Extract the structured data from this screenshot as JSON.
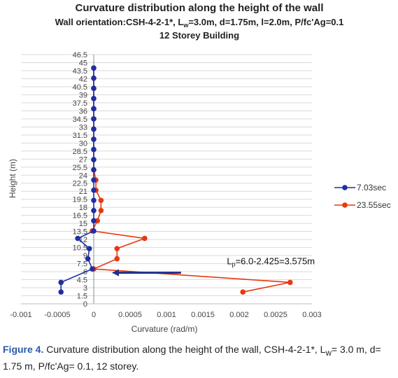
{
  "chart_data": {
    "type": "scatter",
    "title": "Curvature distribution along the height of the wall",
    "subtitle_pre": "Wall orientation:CSH-4-2-1*, L",
    "subtitle_sub": "w",
    "subtitle_post": "=3.0m, d=1.75m, l=2.0m, P/fc'Ag=0.1",
    "subtitle2": "12 Storey Building",
    "xlabel": "Curvature (rad/m)",
    "ylabel": "Height (m)",
    "xlim": [
      -0.001,
      0.003
    ],
    "ylim": [
      0,
      46.5
    ],
    "x_ticks": [
      "-0.001",
      "-0.0005",
      "0",
      "0.0005",
      "0.001",
      "0.0015",
      "0.002",
      "0.0025",
      "0.003"
    ],
    "y_ticks": [
      "0",
      "1.5",
      "3",
      "4.5",
      "6",
      "7.5",
      "9",
      "10.5",
      "12",
      "13.5",
      "15",
      "16.5",
      "18",
      "19.5",
      "21",
      "22.5",
      "24",
      "25.5",
      "27",
      "28.5",
      "30",
      "31.5",
      "33",
      "34.5",
      "36",
      "37.5",
      "39",
      "40.5",
      "42",
      "43.5",
      "45",
      "46.5"
    ],
    "grid": true,
    "legend_position": "right",
    "series": [
      {
        "name": "7.03sec",
        "color": "#1f2fa0",
        "points": [
          [
            -0.00045,
            2.2
          ],
          [
            -0.00045,
            4.0
          ],
          [
            -2e-05,
            6.5
          ],
          [
            -8e-05,
            8.4
          ],
          [
            -6e-05,
            10.3
          ],
          [
            -0.00022,
            12.2
          ],
          [
            0.0,
            13.6
          ],
          [
            0.0,
            15.5
          ],
          [
            0.0,
            17.4
          ],
          [
            0.0,
            19.3
          ],
          [
            0.0,
            21.2
          ],
          [
            0.0,
            23.1
          ],
          [
            0.0,
            25.0
          ],
          [
            0.0,
            26.9
          ],
          [
            0.0,
            28.8
          ],
          [
            0.0,
            30.7
          ],
          [
            0.0,
            32.6
          ],
          [
            0.0,
            34.5
          ],
          [
            0.0,
            36.4
          ],
          [
            0.0,
            38.3
          ],
          [
            0.0,
            40.2
          ],
          [
            0.0,
            42.1
          ],
          [
            0.0,
            44.0
          ]
        ]
      },
      {
        "name": "23.55sec",
        "color": "#e8380f",
        "points": [
          [
            0.00205,
            2.2
          ],
          [
            0.0027,
            4.0
          ],
          [
            0.0,
            6.5
          ],
          [
            0.00032,
            8.4
          ],
          [
            0.00032,
            10.3
          ],
          [
            0.0007,
            12.2
          ],
          [
            -2e-05,
            13.6
          ],
          [
            5e-05,
            15.5
          ],
          [
            0.0001,
            17.4
          ],
          [
            0.0001,
            19.3
          ],
          [
            3e-05,
            21.2
          ],
          [
            3e-05,
            23.1
          ],
          [
            0.0,
            25.0
          ],
          [
            0.0,
            26.9
          ],
          [
            0.0,
            28.8
          ],
          [
            0.0,
            30.7
          ],
          [
            0.0,
            32.6
          ],
          [
            0.0,
            34.5
          ],
          [
            0.0,
            36.4
          ],
          [
            0.0,
            38.3
          ],
          [
            0.0,
            40.2
          ],
          [
            0.0,
            42.1
          ],
          [
            0.0,
            44.0
          ]
        ]
      }
    ],
    "annotation": {
      "pre": "L",
      "sub": "p",
      "post": "=6.0-2.425=3.575m",
      "arrow_from": [
        0.0012,
        5.8
      ],
      "arrow_to": [
        0.00025,
        5.8
      ]
    }
  },
  "caption": {
    "figure_label": "Figure 4.",
    "text_pre": " Curvature distribution along the height of the wall, CSH-4-2-1*, L",
    "text_sub": "w",
    "text_post": "= 3.0 m, d= 1.75 m, P/fc'Ag= 0.1, 12 storey."
  }
}
